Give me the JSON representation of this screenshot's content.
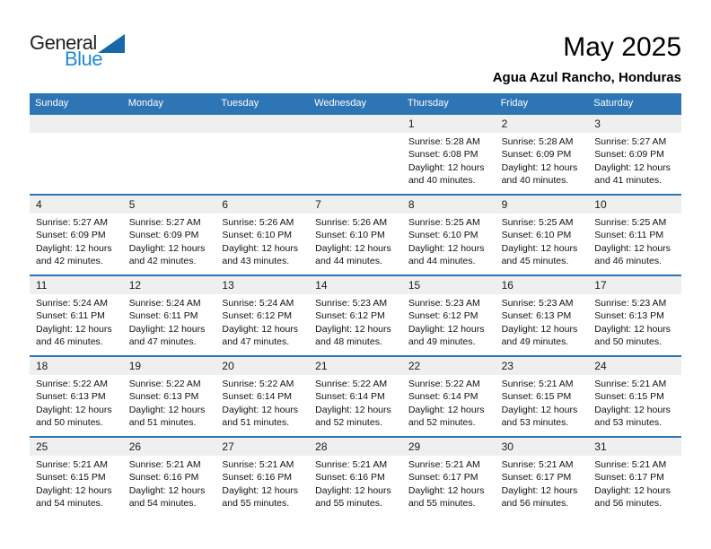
{
  "logo": {
    "word_top": "General",
    "word_bottom": "Blue"
  },
  "title": "May 2025",
  "subtitle": "Agua Azul Rancho, Honduras",
  "weekdays": [
    "Sunday",
    "Monday",
    "Tuesday",
    "Wednesday",
    "Thursday",
    "Friday",
    "Saturday"
  ],
  "colors": {
    "header_blue": "#2E75B6",
    "row_line_blue": "#2E75B6",
    "day_strip_gray": "#EFEFEF",
    "logo_blue": "#1E8BD1",
    "logo_triangle_blue": "#1668A9"
  },
  "weeks": [
    [
      {
        "day": "",
        "lines": []
      },
      {
        "day": "",
        "lines": []
      },
      {
        "day": "",
        "lines": []
      },
      {
        "day": "",
        "lines": []
      },
      {
        "day": "1",
        "lines": [
          "Sunrise: 5:28 AM",
          "Sunset: 6:08 PM",
          "Daylight: 12 hours",
          "and 40 minutes."
        ]
      },
      {
        "day": "2",
        "lines": [
          "Sunrise: 5:28 AM",
          "Sunset: 6:09 PM",
          "Daylight: 12 hours",
          "and 40 minutes."
        ]
      },
      {
        "day": "3",
        "lines": [
          "Sunrise: 5:27 AM",
          "Sunset: 6:09 PM",
          "Daylight: 12 hours",
          "and 41 minutes."
        ]
      }
    ],
    [
      {
        "day": "4",
        "lines": [
          "Sunrise: 5:27 AM",
          "Sunset: 6:09 PM",
          "Daylight: 12 hours",
          "and 42 minutes."
        ]
      },
      {
        "day": "5",
        "lines": [
          "Sunrise: 5:27 AM",
          "Sunset: 6:09 PM",
          "Daylight: 12 hours",
          "and 42 minutes."
        ]
      },
      {
        "day": "6",
        "lines": [
          "Sunrise: 5:26 AM",
          "Sunset: 6:10 PM",
          "Daylight: 12 hours",
          "and 43 minutes."
        ]
      },
      {
        "day": "7",
        "lines": [
          "Sunrise: 5:26 AM",
          "Sunset: 6:10 PM",
          "Daylight: 12 hours",
          "and 44 minutes."
        ]
      },
      {
        "day": "8",
        "lines": [
          "Sunrise: 5:25 AM",
          "Sunset: 6:10 PM",
          "Daylight: 12 hours",
          "and 44 minutes."
        ]
      },
      {
        "day": "9",
        "lines": [
          "Sunrise: 5:25 AM",
          "Sunset: 6:10 PM",
          "Daylight: 12 hours",
          "and 45 minutes."
        ]
      },
      {
        "day": "10",
        "lines": [
          "Sunrise: 5:25 AM",
          "Sunset: 6:11 PM",
          "Daylight: 12 hours",
          "and 46 minutes."
        ]
      }
    ],
    [
      {
        "day": "11",
        "lines": [
          "Sunrise: 5:24 AM",
          "Sunset: 6:11 PM",
          "Daylight: 12 hours",
          "and 46 minutes."
        ]
      },
      {
        "day": "12",
        "lines": [
          "Sunrise: 5:24 AM",
          "Sunset: 6:11 PM",
          "Daylight: 12 hours",
          "and 47 minutes."
        ]
      },
      {
        "day": "13",
        "lines": [
          "Sunrise: 5:24 AM",
          "Sunset: 6:12 PM",
          "Daylight: 12 hours",
          "and 47 minutes."
        ]
      },
      {
        "day": "14",
        "lines": [
          "Sunrise: 5:23 AM",
          "Sunset: 6:12 PM",
          "Daylight: 12 hours",
          "and 48 minutes."
        ]
      },
      {
        "day": "15",
        "lines": [
          "Sunrise: 5:23 AM",
          "Sunset: 6:12 PM",
          "Daylight: 12 hours",
          "and 49 minutes."
        ]
      },
      {
        "day": "16",
        "lines": [
          "Sunrise: 5:23 AM",
          "Sunset: 6:13 PM",
          "Daylight: 12 hours",
          "and 49 minutes."
        ]
      },
      {
        "day": "17",
        "lines": [
          "Sunrise: 5:23 AM",
          "Sunset: 6:13 PM",
          "Daylight: 12 hours",
          "and 50 minutes."
        ]
      }
    ],
    [
      {
        "day": "18",
        "lines": [
          "Sunrise: 5:22 AM",
          "Sunset: 6:13 PM",
          "Daylight: 12 hours",
          "and 50 minutes."
        ]
      },
      {
        "day": "19",
        "lines": [
          "Sunrise: 5:22 AM",
          "Sunset: 6:13 PM",
          "Daylight: 12 hours",
          "and 51 minutes."
        ]
      },
      {
        "day": "20",
        "lines": [
          "Sunrise: 5:22 AM",
          "Sunset: 6:14 PM",
          "Daylight: 12 hours",
          "and 51 minutes."
        ]
      },
      {
        "day": "21",
        "lines": [
          "Sunrise: 5:22 AM",
          "Sunset: 6:14 PM",
          "Daylight: 12 hours",
          "and 52 minutes."
        ]
      },
      {
        "day": "22",
        "lines": [
          "Sunrise: 5:22 AM",
          "Sunset: 6:14 PM",
          "Daylight: 12 hours",
          "and 52 minutes."
        ]
      },
      {
        "day": "23",
        "lines": [
          "Sunrise: 5:21 AM",
          "Sunset: 6:15 PM",
          "Daylight: 12 hours",
          "and 53 minutes."
        ]
      },
      {
        "day": "24",
        "lines": [
          "Sunrise: 5:21 AM",
          "Sunset: 6:15 PM",
          "Daylight: 12 hours",
          "and 53 minutes."
        ]
      }
    ],
    [
      {
        "day": "25",
        "lines": [
          "Sunrise: 5:21 AM",
          "Sunset: 6:15 PM",
          "Daylight: 12 hours",
          "and 54 minutes."
        ]
      },
      {
        "day": "26",
        "lines": [
          "Sunrise: 5:21 AM",
          "Sunset: 6:16 PM",
          "Daylight: 12 hours",
          "and 54 minutes."
        ]
      },
      {
        "day": "27",
        "lines": [
          "Sunrise: 5:21 AM",
          "Sunset: 6:16 PM",
          "Daylight: 12 hours",
          "and 55 minutes."
        ]
      },
      {
        "day": "28",
        "lines": [
          "Sunrise: 5:21 AM",
          "Sunset: 6:16 PM",
          "Daylight: 12 hours",
          "and 55 minutes."
        ]
      },
      {
        "day": "29",
        "lines": [
          "Sunrise: 5:21 AM",
          "Sunset: 6:17 PM",
          "Daylight: 12 hours",
          "and 55 minutes."
        ]
      },
      {
        "day": "30",
        "lines": [
          "Sunrise: 5:21 AM",
          "Sunset: 6:17 PM",
          "Daylight: 12 hours",
          "and 56 minutes."
        ]
      },
      {
        "day": "31",
        "lines": [
          "Sunrise: 5:21 AM",
          "Sunset: 6:17 PM",
          "Daylight: 12 hours",
          "and 56 minutes."
        ]
      }
    ]
  ]
}
